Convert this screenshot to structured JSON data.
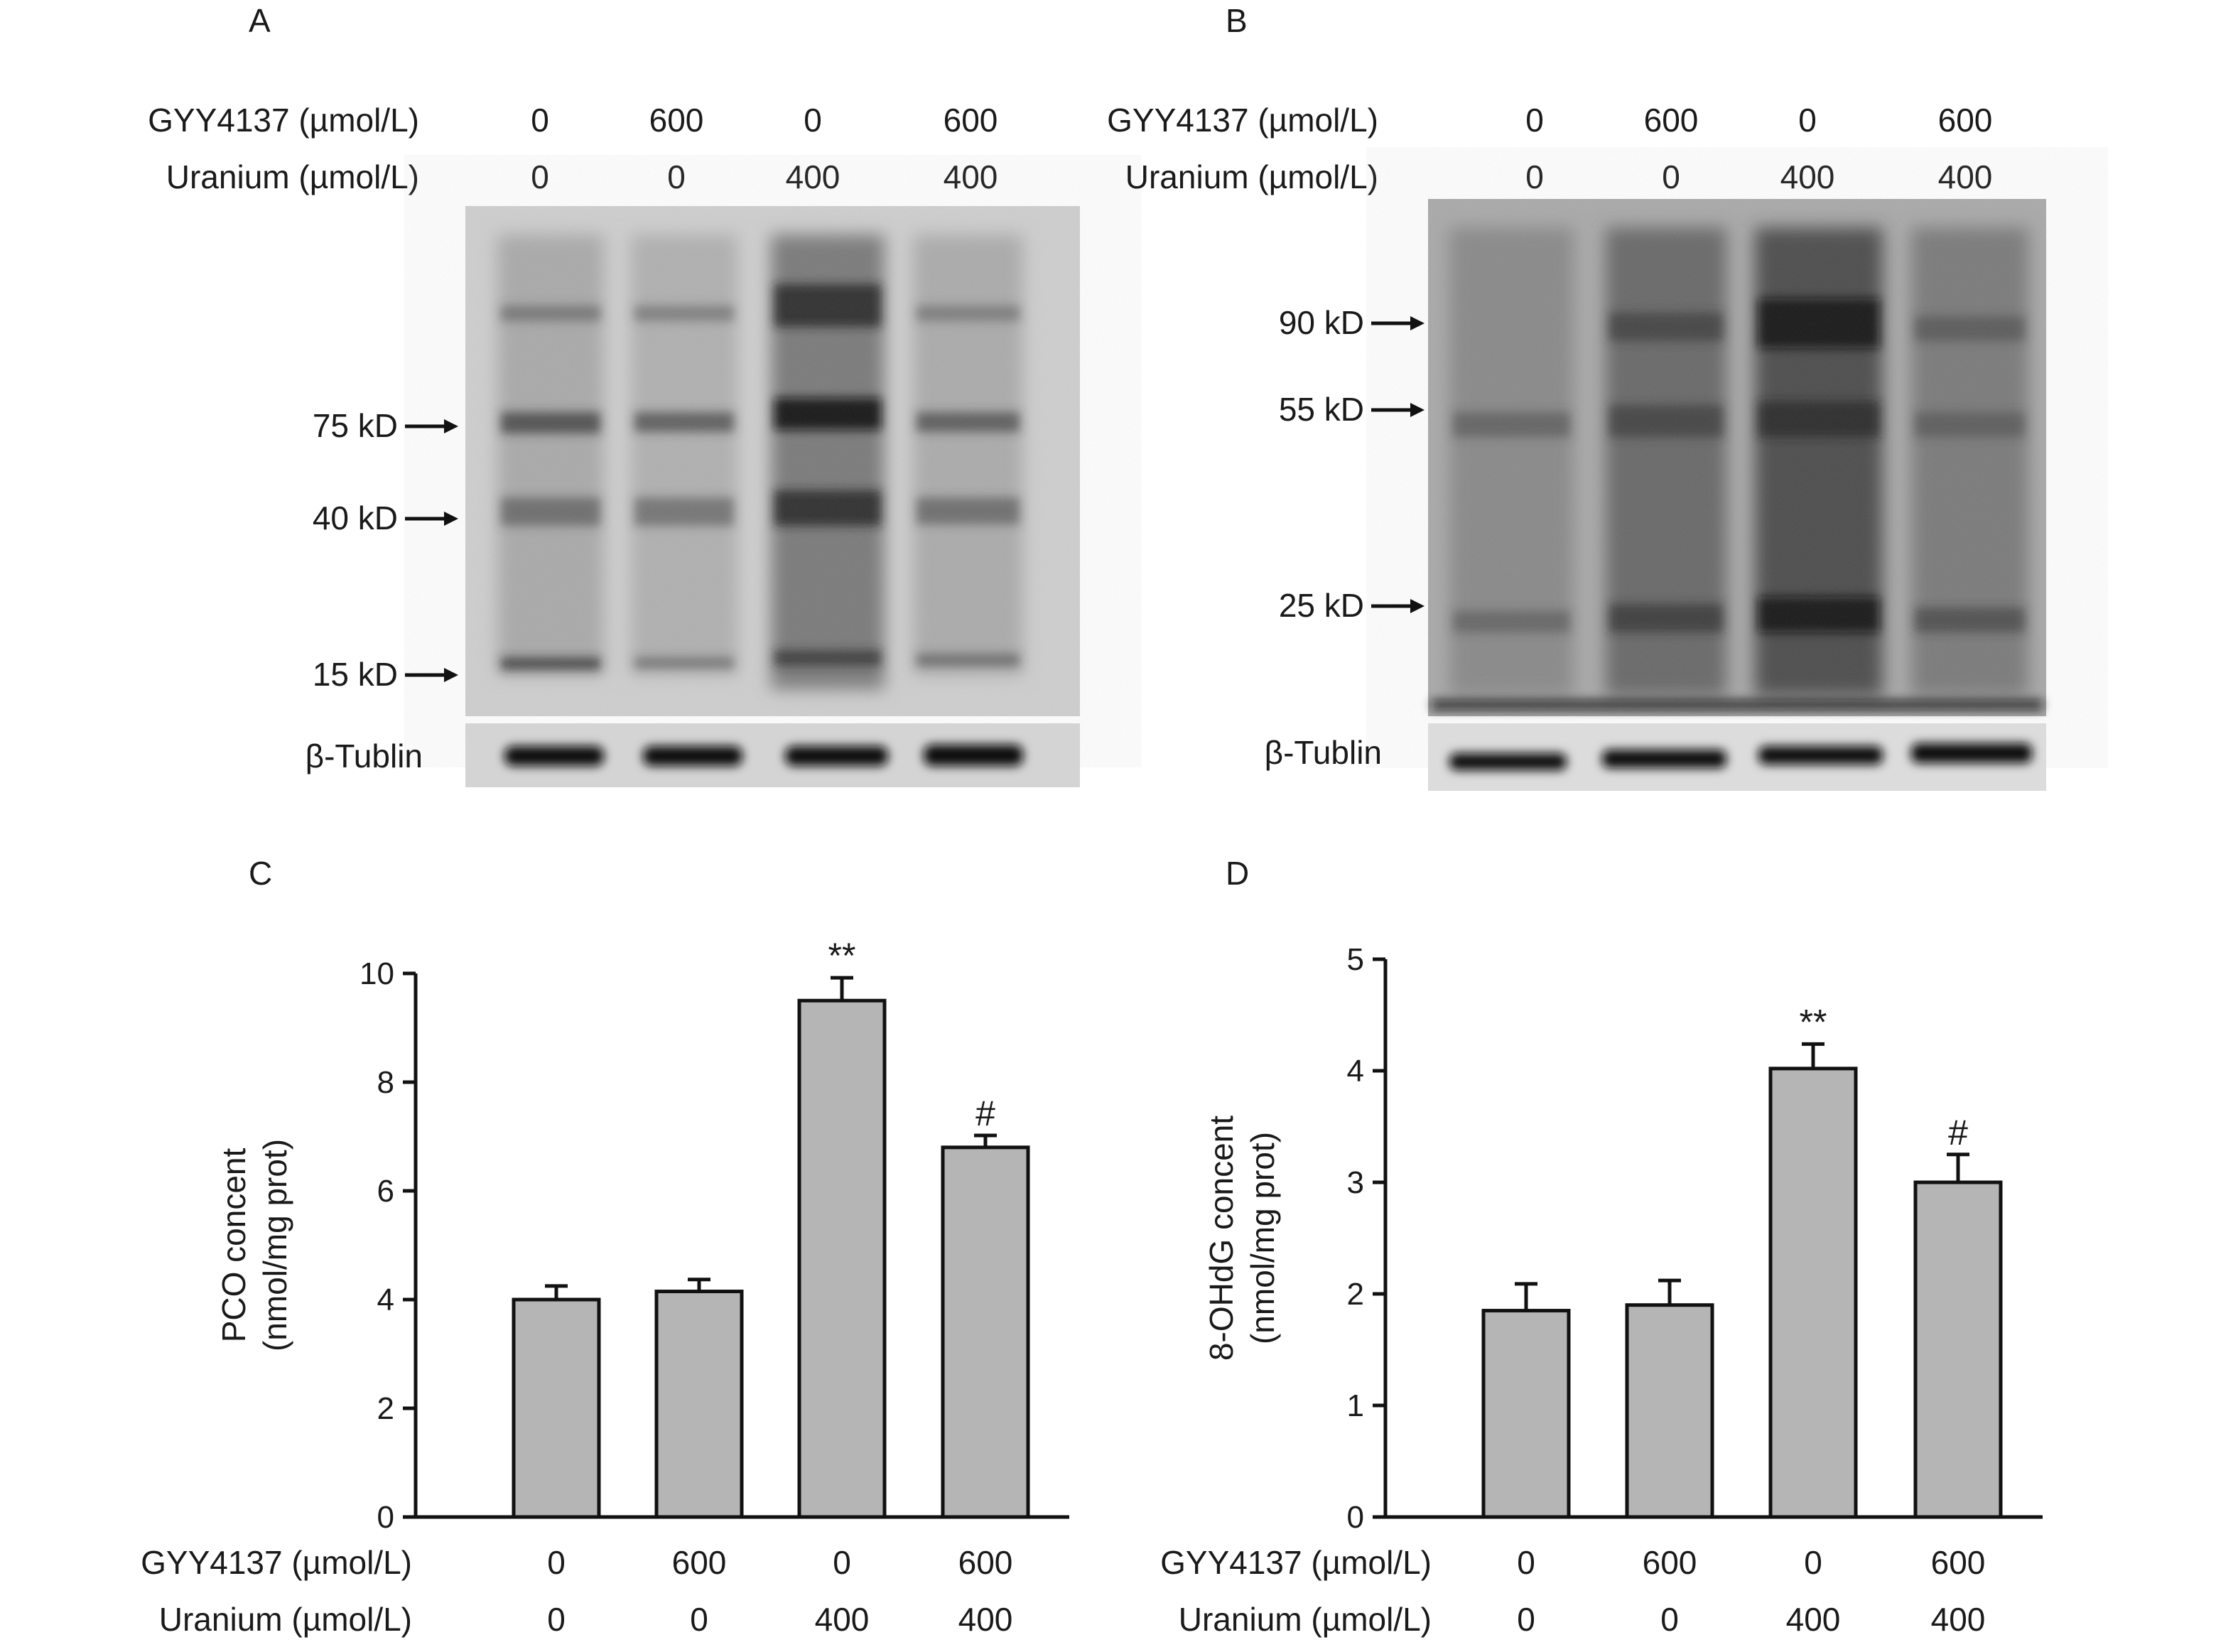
{
  "panels": {
    "a": "A",
    "b": "B",
    "c": "C",
    "d": "D"
  },
  "blots": [
    {
      "panel": "A",
      "row_labels": [
        "GYY4137 (µmol/L)",
        "Uranium (µmol/L)"
      ],
      "gyy": [
        "0",
        "600",
        "0",
        "600"
      ],
      "uranium": [
        "0",
        "0",
        "400",
        "400"
      ],
      "markers": [
        "75 kD",
        "40 kD",
        "15 kD"
      ],
      "loading_label": "β-Tublin"
    },
    {
      "panel": "B",
      "row_labels": [
        "GYY4137 (µmol/L)",
        "Uranium (µmol/L)"
      ],
      "gyy": [
        "0",
        "600",
        "0",
        "600"
      ],
      "uranium": [
        "0",
        "0",
        "400",
        "400"
      ],
      "markers": [
        "90 kD",
        "55 kD",
        "25 kD"
      ],
      "loading_label": "β-Tublin"
    }
  ],
  "chart_data": [
    {
      "panel": "C",
      "type": "bar",
      "ylabel_line1": "PCO concent",
      "ylabel_line2": "(nmol/mg prot)",
      "ylim": [
        0,
        10
      ],
      "yticks": [
        "0",
        "2",
        "4",
        "6",
        "8",
        "10"
      ],
      "values": [
        4.0,
        4.15,
        9.5,
        6.8
      ],
      "errors": [
        0.25,
        0.22,
        0.42,
        0.22
      ],
      "annotations": [
        "",
        "",
        "**",
        "#"
      ],
      "row_labels": [
        "GYY4137 (µmol/L)",
        "Uranium (µmol/L)"
      ],
      "gyy": [
        "0",
        "600",
        "0",
        "600"
      ],
      "uranium": [
        "0",
        "0",
        "400",
        "400"
      ]
    },
    {
      "panel": "D",
      "type": "bar",
      "ylabel_line1": "8-OHdG concent",
      "ylabel_line2": "(nmol/mg prot)",
      "ylim": [
        0,
        5
      ],
      "yticks": [
        "0",
        "1",
        "2",
        "3",
        "4",
        "5"
      ],
      "values": [
        1.85,
        1.9,
        4.02,
        3.0
      ],
      "errors": [
        0.24,
        0.22,
        0.22,
        0.25
      ],
      "annotations": [
        "",
        "",
        "**",
        "#"
      ],
      "row_labels": [
        "GYY4137 (µmol/L)",
        "Uranium (µmol/L)"
      ],
      "gyy": [
        "0",
        "600",
        "0",
        "600"
      ],
      "uranium": [
        "0",
        "0",
        "400",
        "400"
      ]
    }
  ]
}
